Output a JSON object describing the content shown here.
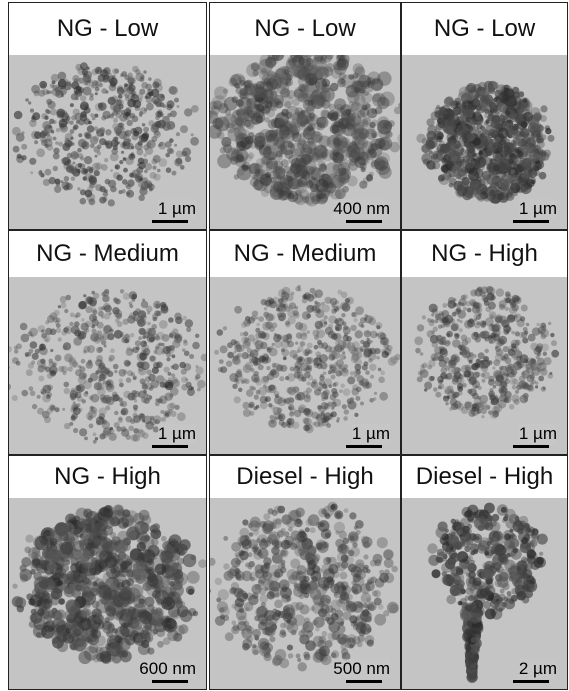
{
  "panels": [
    {
      "label": "NG - Low",
      "scale": "1 µm"
    },
    {
      "label": "NG - Low",
      "scale": "400 nm"
    },
    {
      "label": "NG - Low",
      "scale": "1 µm"
    },
    {
      "label": "NG - Medium",
      "scale": "1 µm"
    },
    {
      "label": "NG - Medium",
      "scale": "1 µm"
    },
    {
      "label": "NG - High",
      "scale": "1 µm"
    },
    {
      "label": "NG - High",
      "scale": "600 nm"
    },
    {
      "label": "Diesel - High",
      "scale": "500 nm"
    },
    {
      "label": "Diesel - High",
      "scale": "2 µm"
    }
  ]
}
